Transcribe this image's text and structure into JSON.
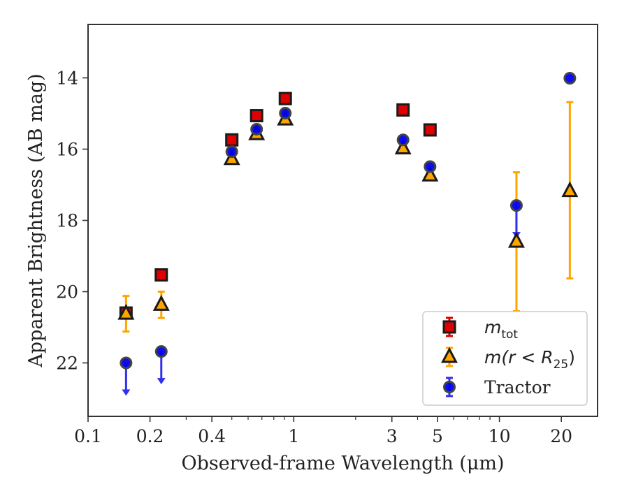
{
  "chart_data": {
    "type": "scatter",
    "xlabel": "Observed-frame Wavelength (μm)",
    "ylabel": "Apparent Brightness (AB mag)",
    "x_scale": "log",
    "xlim": [
      0.1,
      30
    ],
    "ylim": [
      23.5,
      12.5
    ],
    "y_inverted": true,
    "x_ticks": [
      0.1,
      0.2,
      0.4,
      1,
      3,
      5,
      10,
      20
    ],
    "x_tick_labels": [
      "0.1",
      "0.2",
      "0.4",
      "1",
      "3",
      "5",
      "10",
      "20"
    ],
    "y_ticks": [
      14,
      16,
      18,
      20,
      22
    ],
    "y_tick_labels": [
      "14",
      "16",
      "18",
      "20",
      "22"
    ],
    "grid": false,
    "legend_position": "bottom-right",
    "series": [
      {
        "key": "mtot",
        "legend_main": "m",
        "legend_sub": "tot",
        "legend_rest": "",
        "marker": "square",
        "color": "#e00000",
        "edge": "#1a1a1a",
        "points": [
          {
            "x": 0.153,
            "y": 20.6,
            "yerr": [
              0.05,
              0.05
            ]
          },
          {
            "x": 0.227,
            "y": 19.53,
            "yerr": [
              0.05,
              0.05
            ]
          },
          {
            "x": 0.5,
            "y": 15.74,
            "yerr": [
              0.03,
              0.03
            ]
          },
          {
            "x": 0.66,
            "y": 15.06,
            "yerr": [
              0.03,
              0.03
            ]
          },
          {
            "x": 0.91,
            "y": 14.58,
            "yerr": [
              0.03,
              0.03
            ]
          },
          {
            "x": 3.4,
            "y": 14.9,
            "yerr": [
              0.03,
              0.03
            ]
          },
          {
            "x": 4.6,
            "y": 15.46,
            "yerr": [
              0.03,
              0.03
            ]
          }
        ]
      },
      {
        "key": "mr25",
        "legend_main": "m(r < R",
        "legend_sub": "25",
        "legend_rest": ")",
        "marker": "triangle",
        "color": "#ffa500",
        "edge": "#1a1a1a",
        "points": [
          {
            "x": 0.153,
            "y": 20.62,
            "yerr": [
              0.5,
              0.5
            ]
          },
          {
            "x": 0.227,
            "y": 20.37,
            "yerr": [
              0.37,
              0.37
            ]
          },
          {
            "x": 0.5,
            "y": 16.28,
            "yerr": [
              0.03,
              0.03
            ]
          },
          {
            "x": 0.66,
            "y": 15.58,
            "yerr": [
              0.03,
              0.03
            ]
          },
          {
            "x": 0.91,
            "y": 15.17,
            "yerr": [
              0.03,
              0.03
            ]
          },
          {
            "x": 3.4,
            "y": 15.98,
            "yerr": [
              0.03,
              0.03
            ]
          },
          {
            "x": 4.6,
            "y": 16.74,
            "yerr": [
              0.03,
              0.03
            ]
          },
          {
            "x": 12.1,
            "y": 18.6,
            "yerr": [
              1.95,
              1.95
            ]
          },
          {
            "x": 22.0,
            "y": 17.18,
            "yerr": [
              2.5,
              2.45
            ]
          }
        ]
      },
      {
        "key": "tractor",
        "legend_main": "Tractor",
        "legend_sub": "",
        "legend_rest": "",
        "marker": "circle",
        "color": "#0000ee",
        "edge": "#444444",
        "errcolor": "#2f2fee",
        "points": [
          {
            "x": 0.153,
            "y": 22.0,
            "upper_limit": true
          },
          {
            "x": 0.227,
            "y": 21.68,
            "upper_limit": true
          },
          {
            "x": 0.5,
            "y": 16.07,
            "yerr": [
              0.05,
              0.05
            ]
          },
          {
            "x": 0.66,
            "y": 15.44,
            "yerr": [
              0.05,
              0.05
            ]
          },
          {
            "x": 0.91,
            "y": 14.99,
            "yerr": [
              0.05,
              0.05
            ]
          },
          {
            "x": 3.4,
            "y": 15.74,
            "yerr": [
              0.05,
              0.05
            ]
          },
          {
            "x": 4.6,
            "y": 16.49,
            "yerr": [
              0.05,
              0.05
            ]
          },
          {
            "x": 12.1,
            "y": 17.58,
            "upper_limit": true
          },
          {
            "x": 22.0,
            "y": 14.01,
            "yerr": [
              0.05,
              0.05
            ]
          }
        ]
      }
    ]
  }
}
